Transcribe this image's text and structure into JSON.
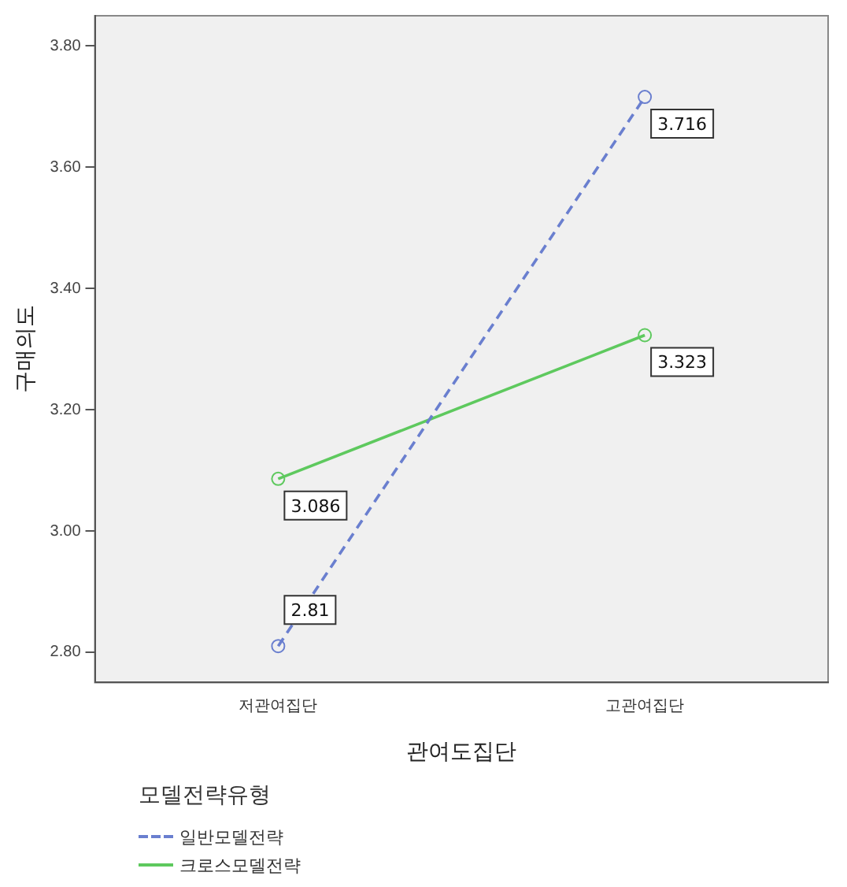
{
  "chart_data": {
    "type": "line",
    "xlabel": "관여도집단",
    "ylabel": "구매의도",
    "legend_title": "모델전략유형",
    "categories": [
      "저관여집단",
      "고관여집단"
    ],
    "series": [
      {
        "name": "일반모델전략",
        "color": "#6a7fcf",
        "values": [
          2.81,
          3.716
        ],
        "line_style": "dashed"
      },
      {
        "name": "크로스모델전략",
        "color": "#5ec95e",
        "values": [
          3.086,
          3.323
        ],
        "line_style": "solid"
      }
    ],
    "ylim": [
      2.75,
      3.85
    ],
    "yticks": [
      {
        "value": 2.8,
        "label": "2.80"
      },
      {
        "value": 3.0,
        "label": "3.00"
      },
      {
        "value": 3.2,
        "label": "3.20"
      },
      {
        "value": 3.4,
        "label": "3.40"
      },
      {
        "value": 3.6,
        "label": "3.60"
      },
      {
        "value": 3.8,
        "label": "3.80"
      }
    ],
    "grid": false,
    "legend": "bottom left",
    "marker": "circle",
    "data_labels": true
  }
}
